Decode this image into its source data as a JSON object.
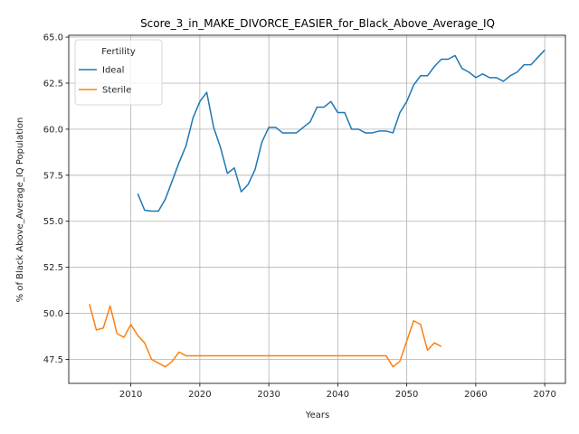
{
  "chart_data": {
    "type": "line",
    "title": "Score_3_in_MAKE_DIVORCE_EASIER_for_Black_Above_Average_IQ",
    "xlabel": "Years",
    "ylabel": "% of Black Above_Average_IQ Population",
    "xlim": [
      2001,
      2073
    ],
    "ylim": [
      46.2,
      65.1
    ],
    "xticks": [
      2010,
      2020,
      2030,
      2040,
      2050,
      2060,
      2070
    ],
    "yticks": [
      47.5,
      50.0,
      52.5,
      55.0,
      57.5,
      60.0,
      62.5,
      65.0
    ],
    "grid": true,
    "legend": {
      "title": "Fertility",
      "placement": "upper-left"
    },
    "series": [
      {
        "name": "Ideal",
        "color": "#1f77b4",
        "x": [
          2011,
          2012,
          2013,
          2014,
          2015,
          2016,
          2017,
          2018,
          2019,
          2020,
          2021,
          2022,
          2023,
          2024,
          2025,
          2026,
          2027,
          2028,
          2029,
          2030,
          2031,
          2032,
          2033,
          2034,
          2035,
          2036,
          2037,
          2038,
          2039,
          2040,
          2041,
          2042,
          2043,
          2044,
          2045,
          2046,
          2047,
          2048,
          2049,
          2050,
          2051,
          2052,
          2053,
          2054,
          2055,
          2056,
          2057,
          2058,
          2059,
          2060,
          2061,
          2062,
          2063,
          2064,
          2065,
          2066,
          2067,
          2068,
          2069,
          2070
        ],
        "values": [
          56.5,
          55.6,
          55.55,
          55.55,
          56.2,
          57.2,
          58.2,
          59.1,
          60.6,
          61.5,
          62.0,
          60.1,
          59.0,
          57.6,
          57.9,
          56.6,
          57.0,
          57.8,
          59.3,
          60.1,
          60.1,
          59.8,
          59.8,
          59.8,
          60.1,
          60.4,
          61.2,
          61.2,
          61.5,
          60.9,
          60.9,
          60.0,
          60.0,
          59.8,
          59.8,
          59.9,
          59.9,
          59.8,
          60.9,
          61.5,
          62.4,
          62.9,
          62.9,
          63.4,
          63.8,
          63.8,
          64.0,
          63.3,
          63.1,
          62.8,
          63.0,
          62.8,
          62.8,
          62.6,
          62.9,
          63.1,
          63.5,
          63.5,
          63.9,
          64.3
        ]
      },
      {
        "name": "Sterile",
        "color": "#ff7f0e",
        "x": [
          2004,
          2005,
          2006,
          2007,
          2008,
          2009,
          2010,
          2011,
          2012,
          2013,
          2014,
          2015,
          2016,
          2017,
          2018,
          2019,
          2020,
          2021,
          2022,
          2023,
          2024,
          2025,
          2026,
          2027,
          2028,
          2029,
          2030,
          2031,
          2032,
          2033,
          2034,
          2035,
          2036,
          2037,
          2038,
          2039,
          2040,
          2041,
          2042,
          2043,
          2044,
          2045,
          2046,
          2047,
          2048,
          2049,
          2050,
          2051,
          2052,
          2053,
          2054,
          2055
        ],
        "values": [
          50.5,
          49.1,
          49.2,
          50.4,
          48.9,
          48.7,
          49.4,
          48.8,
          48.4,
          47.5,
          47.3,
          47.1,
          47.4,
          47.9,
          47.7,
          47.7,
          47.7,
          47.7,
          47.7,
          47.7,
          47.7,
          47.7,
          47.7,
          47.7,
          47.7,
          47.7,
          47.7,
          47.7,
          47.7,
          47.7,
          47.7,
          47.7,
          47.7,
          47.7,
          47.7,
          47.7,
          47.7,
          47.7,
          47.7,
          47.7,
          47.7,
          47.7,
          47.7,
          47.7,
          47.1,
          47.4,
          48.5,
          49.6,
          49.4,
          48.0,
          48.4,
          48.2
        ]
      }
    ]
  }
}
